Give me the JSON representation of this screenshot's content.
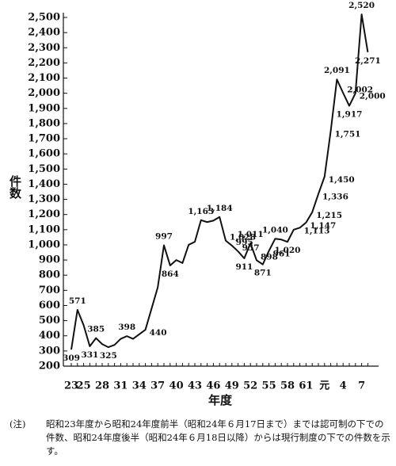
{
  "chart_data": {
    "type": "line",
    "x_label": "年度",
    "y_label": "件数",
    "categories": [
      "23",
      null,
      "25",
      null,
      null,
      "28",
      null,
      null,
      "31",
      null,
      null,
      "34",
      null,
      null,
      "37",
      null,
      null,
      "40",
      null,
      null,
      "43",
      null,
      null,
      "46",
      null,
      null,
      "49",
      null,
      null,
      "52",
      null,
      null,
      "55",
      null,
      null,
      "58",
      null,
      null,
      "61",
      null,
      null,
      "元",
      null,
      null,
      "4",
      null,
      null,
      "7",
      null
    ],
    "values": [
      309,
      571,
      470,
      331,
      385,
      345,
      325,
      340,
      380,
      398,
      380,
      410,
      440,
      580,
      720,
      997,
      864,
      900,
      880,
      1000,
      1020,
      1163,
      1150,
      1160,
      1184,
      1028,
      995,
      957,
      911,
      1011,
      898,
      871,
      961,
      1040,
      1035,
      1020,
      1100,
      1113,
      1147,
      1215,
      1336,
      1450,
      1751,
      2091,
      2002,
      1917,
      2000,
      2520,
      2271
    ],
    "value_labels": [
      "309",
      "571",
      null,
      "331",
      "385",
      null,
      "325",
      null,
      null,
      "398",
      null,
      null,
      "440",
      null,
      null,
      "997",
      "864",
      null,
      null,
      null,
      null,
      "1,163",
      null,
      null,
      "1,184",
      "1,028",
      "995",
      "957",
      "911",
      "1,011",
      "898",
      "871",
      "961",
      "1,040",
      null,
      "1,020",
      null,
      "1,113",
      "1,147",
      "1,215",
      "1,336",
      "1,450",
      "1,751",
      "2,091",
      "2,002",
      "1,917",
      "2,000",
      "2,520",
      "2,271"
    ],
    "color": "#111111",
    "ylim": [
      200,
      2500
    ],
    "yticks": [
      200,
      300,
      400,
      500,
      600,
      700,
      800,
      900,
      {
        "value": 1000,
        "label": "1,000"
      },
      {
        "value": 1100,
        "label": "1,100"
      },
      {
        "value": 1200,
        "label": "1,200"
      },
      {
        "value": 1300,
        "label": "1,300"
      },
      {
        "value": 1400,
        "label": "1,400"
      },
      {
        "value": 1500,
        "label": "1,500"
      },
      {
        "value": 1600,
        "label": "1,600"
      },
      {
        "value": 1700,
        "label": "1,700"
      },
      {
        "value": 1800,
        "label": "1,800"
      },
      {
        "value": 1900,
        "label": "1,900"
      },
      {
        "value": 2000,
        "label": "2,000"
      },
      {
        "value": 2100,
        "label": "2,100"
      },
      {
        "value": 2200,
        "label": "2,200"
      },
      {
        "value": 2300,
        "label": "2,300"
      },
      {
        "value": 2400,
        "label": "2,400"
      },
      {
        "value": 2500,
        "label": "2,500"
      }
    ],
    "grid": false
  },
  "note": {
    "prefix": "(注)",
    "text": "昭和23年度から昭和24年度前半（昭和24年６月17日まで）までは認可制の下での件数、昭和24年度後半（昭和24年６月18日以降）からは現行制度の下での件数を示す。"
  }
}
